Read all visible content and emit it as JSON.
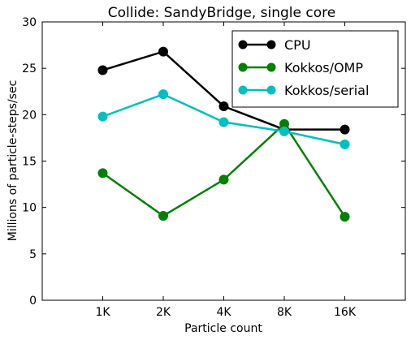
{
  "chart_data": {
    "type": "line",
    "title": "Collide: SandyBridge, single core",
    "xlabel": "Particle count",
    "ylabel": "Millions of particle-steps/sec",
    "categories": [
      "1K",
      "2K",
      "4K",
      "8K",
      "16K"
    ],
    "xlim": [
      0,
      6
    ],
    "ylim": [
      0,
      30
    ],
    "yticks": [
      "0",
      "5",
      "10",
      "15",
      "20",
      "25",
      "30"
    ],
    "grid": false,
    "legend_position": "top-right",
    "series": [
      {
        "name": "CPU",
        "color": "#000000",
        "values": [
          24.8,
          26.8,
          20.9,
          18.4,
          18.4
        ]
      },
      {
        "name": "Kokkos/OMP",
        "color": "#008000",
        "values": [
          13.7,
          9.1,
          13.0,
          19.0,
          9.0
        ]
      },
      {
        "name": "Kokkos/serial",
        "color": "#00bfbf",
        "values": [
          19.8,
          22.2,
          19.2,
          18.2,
          16.8
        ]
      }
    ]
  }
}
